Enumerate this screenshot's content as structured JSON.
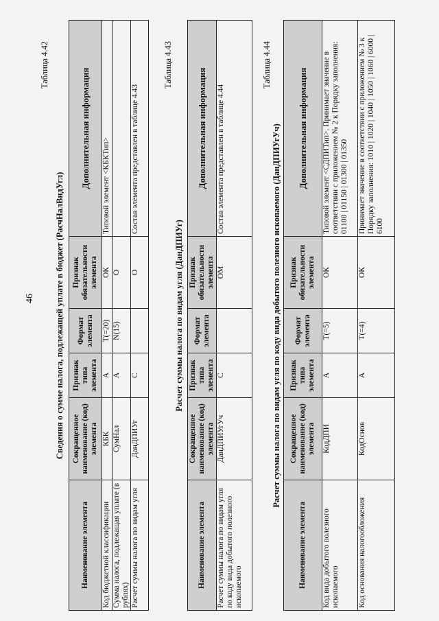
{
  "page_number": "46",
  "headers": [
    "Наименование элемента",
    "Сокращенное наименование (код) элемента",
    "Признак типа элемента",
    "Формат элемента",
    "Признак обязательности элемента",
    "Дополнительная информация"
  ],
  "tables": [
    {
      "label": "Таблица 4.42",
      "title": "Сведения о сумме налога, подлежащей уплате в бюджет (РасчНалВидУгл)",
      "rows": [
        {
          "name": "Код бюджетной классификации",
          "code": "КБК",
          "type": "А",
          "format": "T(=20)",
          "required": "ОК",
          "info": "Типовой элемент <КБКТип>"
        },
        {
          "name": "Сумма налога, подлежащая уплате (в рублях)",
          "code": "СумНал",
          "type": "А",
          "format": "N(15)",
          "required": "О",
          "info": ""
        },
        {
          "name": "Расчет суммы налога по видам угля",
          "code": "ДанДПИУг",
          "type": "С",
          "format": "",
          "required": "О",
          "info": "Состав элемента представлен в таблице 4.43"
        }
      ]
    },
    {
      "label": "Таблица 4.43",
      "title": "Расчет суммы налога по видам угля (ДанДПИУг)",
      "rows": [
        {
          "name": "Расчет суммы налога по видам угля по коду вида добытого полезного ископаемого",
          "code": "ДанДПИУгУч",
          "type": "С",
          "format": "",
          "required": "ОМ",
          "info": "Состав элемента представлен в таблице 4.44"
        }
      ]
    },
    {
      "label": "Таблица 4.44",
      "title": "Расчет суммы налога по видам угля по коду вида добытого полезного ископаемого (ДанДПИУгУч)",
      "rows": [
        {
          "name": "Код вида добытого полезного ископаемого",
          "code": "КодДПИ",
          "type": "А",
          "format": "T(=5)",
          "required": "ОК",
          "info": "Типовой элемент <СДПИТип>. Принимает значение в соответствии с приложением № 2 к Порядку заполнения: 01100 | 01150 | 01300 | 01350"
        },
        {
          "name": "Код основания налогообложения",
          "code": "КодОснов",
          "type": "А",
          "format": "T(=4)",
          "required": "ОК",
          "info": "Принимает значение в соответствии с приложением № 3 к Порядку заполнения: 1010 | 1020 | 1040 | 1050 | 1060 | 6000 | 6100"
        }
      ]
    }
  ]
}
